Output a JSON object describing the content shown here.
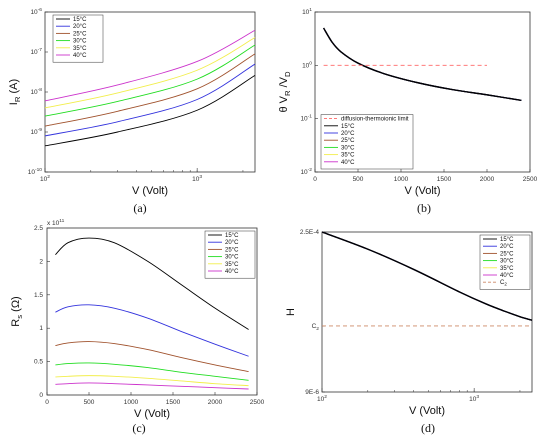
{
  "figure": {
    "captions": [
      "(a)",
      "(b)",
      "(c)",
      "(d)"
    ]
  },
  "colors": {
    "15°C": "#000000",
    "20°C": "#3333dd",
    "25°C": "#a0522d",
    "30°C": "#22dd22",
    "35°C": "#f2ee4c",
    "40°C": "#cc33cc",
    "diffusion-thermoionic limit": "#ff6666",
    "C2": "#cc8866"
  },
  "chart_data": [
    {
      "type": "line",
      "panel": "(a)",
      "xlabel": "V (Volt)",
      "ylabel": "I_R (A)",
      "xscale": "log",
      "yscale": "log",
      "xlim": [
        100,
        2400
      ],
      "ylim": [
        1e-10,
        1e-06
      ],
      "xticks": [
        "10^2",
        "10^3"
      ],
      "yticks": [
        "10^-10",
        "10^-9",
        "10^-8",
        "10^-7",
        "10^-6"
      ],
      "legend": "top-left",
      "x": [
        100,
        300,
        1000,
        2400
      ],
      "series": [
        {
          "name": "15°C",
          "values": [
            4.5e-10,
            1e-09,
            3.5e-09,
            2.6e-08
          ]
        },
        {
          "name": "20°C",
          "values": [
            8e-10,
            1.8e-09,
            6.5e-09,
            5e-08
          ]
        },
        {
          "name": "25°C",
          "values": [
            1.4e-09,
            3.3e-09,
            1.2e-08,
            9e-08
          ]
        },
        {
          "name": "30°C",
          "values": [
            2.5e-09,
            5.8e-09,
            2.1e-08,
            1.5e-07
          ]
        },
        {
          "name": "35°C",
          "values": [
            4e-09,
            9.5e-09,
            3.5e-08,
            2.3e-07
          ]
        },
        {
          "name": "40°C",
          "values": [
            6e-09,
            1.5e-08,
            5.8e-08,
            3.5e-07
          ]
        }
      ]
    },
    {
      "type": "line",
      "panel": "(b)",
      "xlabel": "V (Volt)",
      "ylabel": "θ V_R /V_D",
      "xscale": "linear",
      "yscale": "log",
      "xlim": [
        0,
        2500
      ],
      "ylim": [
        0.01,
        10
      ],
      "xticks": [
        0,
        500,
        1000,
        1500,
        2000,
        2500
      ],
      "yticks": [
        "10^-2",
        "10^-1",
        "10^0",
        "10^1"
      ],
      "legend": "bottom-left",
      "x": [
        100,
        200,
        300,
        500,
        800,
        1200,
        1600,
        2000,
        2400
      ],
      "series": [
        {
          "name": "diffusion-thermoionic limit",
          "x": [
            100,
            2000
          ],
          "values": [
            1.0,
            1.0
          ],
          "dashed": true
        },
        {
          "name": "15°C",
          "values": [
            5.0,
            2.7,
            1.8,
            1.1,
            0.7,
            0.47,
            0.35,
            0.28,
            0.22
          ]
        },
        {
          "name": "20°C",
          "values": [
            5.0,
            2.7,
            1.8,
            1.1,
            0.7,
            0.47,
            0.35,
            0.28,
            0.22
          ]
        },
        {
          "name": "25°C",
          "values": [
            5.0,
            2.7,
            1.8,
            1.1,
            0.7,
            0.47,
            0.35,
            0.28,
            0.22
          ]
        },
        {
          "name": "30°C",
          "values": [
            5.0,
            2.7,
            1.8,
            1.1,
            0.7,
            0.47,
            0.35,
            0.28,
            0.22
          ]
        },
        {
          "name": "35°C",
          "values": [
            5.0,
            2.7,
            1.8,
            1.1,
            0.7,
            0.47,
            0.35,
            0.28,
            0.22
          ]
        },
        {
          "name": "40°C",
          "values": [
            5.0,
            2.7,
            1.8,
            1.1,
            0.7,
            0.47,
            0.35,
            0.28,
            0.22
          ]
        }
      ]
    },
    {
      "type": "line",
      "panel": "(c)",
      "xlabel": "V (Volt)",
      "ylabel": "R_s (Ω)",
      "yexponent": "x 10^11",
      "xscale": "linear",
      "yscale": "linear",
      "xlim": [
        0,
        2500
      ],
      "ylim": [
        0,
        2.5
      ],
      "xticks": [
        0,
        500,
        1000,
        1500,
        2000,
        2500
      ],
      "yticks": [
        0,
        0.5,
        1,
        1.5,
        2,
        2.5
      ],
      "legend": "top-right",
      "x": [
        100,
        250,
        500,
        800,
        1200,
        1600,
        2000,
        2400
      ],
      "series": [
        {
          "name": "15°C",
          "values": [
            2.1,
            2.28,
            2.35,
            2.28,
            2.0,
            1.65,
            1.3,
            0.98
          ]
        },
        {
          "name": "20°C",
          "values": [
            1.24,
            1.32,
            1.35,
            1.3,
            1.15,
            0.95,
            0.76,
            0.58
          ]
        },
        {
          "name": "25°C",
          "values": [
            0.74,
            0.78,
            0.8,
            0.77,
            0.68,
            0.56,
            0.45,
            0.35
          ]
        },
        {
          "name": "30°C",
          "values": [
            0.45,
            0.47,
            0.48,
            0.46,
            0.41,
            0.34,
            0.28,
            0.22
          ]
        },
        {
          "name": "35°C",
          "values": [
            0.27,
            0.28,
            0.29,
            0.28,
            0.25,
            0.21,
            0.17,
            0.14
          ]
        },
        {
          "name": "40°C",
          "values": [
            0.16,
            0.17,
            0.18,
            0.17,
            0.15,
            0.13,
            0.11,
            0.09
          ]
        }
      ]
    },
    {
      "type": "line",
      "panel": "(d)",
      "xlabel": "V (Volt)",
      "ylabel": "H",
      "xscale": "log",
      "yscale": "log",
      "xlim": [
        100,
        2400
      ],
      "yticks": [
        "2.5E-4",
        "C2",
        "9E-6"
      ],
      "ytick_values": [
        0.00025,
        3.55e-05,
        9e-06
      ],
      "xticks": [
        "10^2",
        "10^3"
      ],
      "legend": "top-right",
      "x": [
        100,
        200,
        400,
        800,
        1200,
        1600,
        2000,
        2400
      ],
      "series": [
        {
          "name": "15°C",
          "values": [
            0.00025,
            0.000175,
            0.000115,
            7.2e-05,
            5.6e-05,
            4.8e-05,
            4.3e-05,
            4e-05
          ]
        },
        {
          "name": "20°C",
          "values": [
            0.00025,
            0.000175,
            0.000115,
            7.2e-05,
            5.6e-05,
            4.8e-05,
            4.3e-05,
            4e-05
          ]
        },
        {
          "name": "25°C",
          "values": [
            0.00025,
            0.000175,
            0.000115,
            7.2e-05,
            5.6e-05,
            4.8e-05,
            4.3e-05,
            4e-05
          ]
        },
        {
          "name": "30°C",
          "values": [
            0.00025,
            0.000175,
            0.000115,
            7.2e-05,
            5.6e-05,
            4.8e-05,
            4.3e-05,
            4e-05
          ]
        },
        {
          "name": "35°C",
          "values": [
            0.00025,
            0.000175,
            0.000115,
            7.2e-05,
            5.6e-05,
            4.8e-05,
            4.3e-05,
            4e-05
          ]
        },
        {
          "name": "40°C",
          "values": [
            0.00025,
            0.000175,
            0.000115,
            7.2e-05,
            5.6e-05,
            4.8e-05,
            4.3e-05,
            4e-05
          ]
        },
        {
          "name": "C2",
          "x": [
            100,
            2400
          ],
          "values": [
            3.55e-05,
            3.55e-05
          ],
          "dashed": true
        }
      ]
    }
  ]
}
